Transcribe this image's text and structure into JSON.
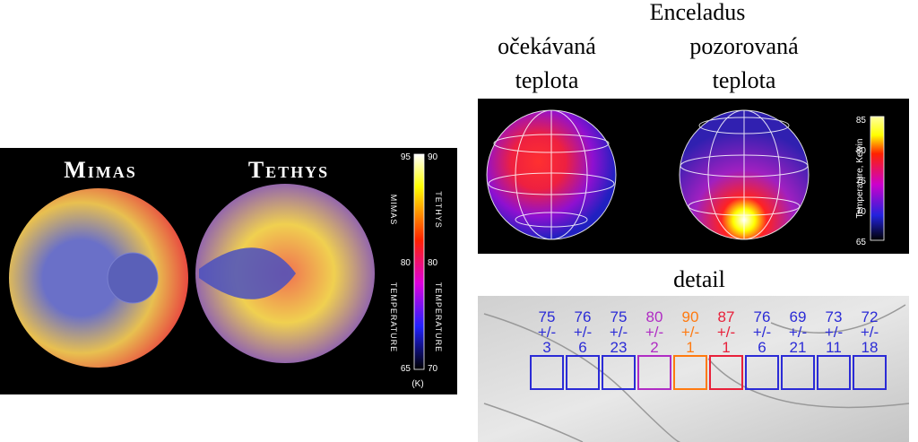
{
  "left": {
    "titles": [
      "Mimas",
      "Tethys"
    ],
    "colorbar": {
      "left_ticks": [
        95,
        80,
        65
      ],
      "right_ticks": [
        90,
        80,
        70
      ],
      "left_label": [
        "Mimas",
        "Temperature"
      ],
      "right_label": [
        "Tethys",
        "Temperature"
      ],
      "unit": "(K)"
    }
  },
  "right": {
    "title": "Enceladus",
    "columns": [
      [
        "očekávaná",
        "teplota"
      ],
      [
        "pozorovaná",
        "teplota"
      ]
    ],
    "colorbar": {
      "ticks": [
        85,
        80,
        75,
        70,
        65
      ],
      "label": "Temperature, Kelvin"
    },
    "detail": {
      "title": "detail",
      "pm": "+/-",
      "boxes": [
        {
          "value": 75,
          "error": 3,
          "color": "#2b2bd6"
        },
        {
          "value": 76,
          "error": 6,
          "color": "#2b2bd6"
        },
        {
          "value": 75,
          "error": 23,
          "color": "#2b2bd6"
        },
        {
          "value": 80,
          "error": 2,
          "color": "#b02cc4"
        },
        {
          "value": 90,
          "error": 1,
          "color": "#ff7a10"
        },
        {
          "value": 87,
          "error": 1,
          "color": "#e8203a"
        },
        {
          "value": 76,
          "error": 6,
          "color": "#2b2bd6"
        },
        {
          "value": 69,
          "error": 21,
          "color": "#2b2bd6"
        },
        {
          "value": 73,
          "error": 11,
          "color": "#2b2bd6"
        },
        {
          "value": 72,
          "error": 18,
          "color": "#2b2bd6"
        }
      ]
    }
  }
}
